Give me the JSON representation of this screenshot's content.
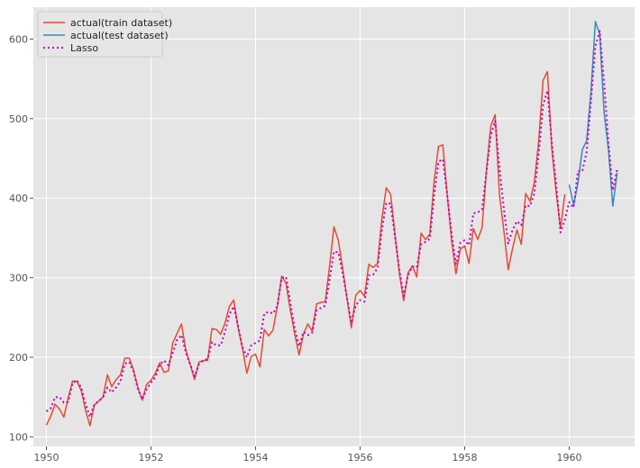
{
  "chart_data": {
    "type": "line",
    "title": "",
    "xlabel": "",
    "ylabel": "",
    "xlim": [
      1949.75,
      1961.25
    ],
    "ylim": [
      88,
      640
    ],
    "xticks": [
      1950,
      1952,
      1954,
      1956,
      1958,
      1960
    ],
    "yticks": [
      100,
      200,
      300,
      400,
      500,
      600
    ],
    "grid": true,
    "legend_position": "top-left",
    "colors": {
      "train": "#e24a33",
      "test": "#348abd",
      "lasso": "#bf00bf",
      "background": "#e5e5e5",
      "grid": "#ffffff"
    },
    "series": [
      {
        "name": "actual(train dataset)",
        "style": "solid",
        "x_start": 1950.0,
        "x_step": 0.08333,
        "values": [
          115,
          126,
          141,
          135,
          125,
          149,
          170,
          170,
          158,
          133,
          114,
          140,
          145,
          150,
          178,
          163,
          172,
          178,
          199,
          199,
          184,
          162,
          146,
          166,
          171,
          180,
          193,
          181,
          183,
          218,
          230,
          242,
          209,
          191,
          172,
          194,
          196,
          196,
          236,
          235,
          229,
          243,
          264,
          272,
          237,
          211,
          180,
          201,
          204,
          188,
          235,
          227,
          234,
          264,
          302,
          293,
          259,
          229,
          203,
          229,
          242,
          233,
          267,
          269,
          270,
          315,
          364,
          347,
          312,
          274,
          237,
          278,
          284,
          277,
          317,
          313,
          318,
          374,
          413,
          405,
          355,
          306,
          271,
          306,
          315,
          301,
          356,
          348,
          355,
          422,
          465,
          467,
          404,
          347,
          305,
          336,
          340,
          318,
          362,
          348,
          363,
          435,
          491,
          505,
          404,
          359,
          310,
          337,
          360,
          342,
          406,
          396,
          420,
          472,
          548,
          559,
          463,
          407,
          362,
          405
        ]
      },
      {
        "name": "actual(test dataset)",
        "style": "solid",
        "x_start": 1960.0,
        "x_step": 0.08333,
        "values": [
          417,
          391,
          419,
          461,
          472,
          535,
          622,
          606,
          508,
          461,
          390,
          432
        ]
      },
      {
        "name": "Lasso",
        "style": "dotted",
        "x_start": 1950.0,
        "x_step": 0.08333,
        "values": [
          132,
          136,
          150,
          150,
          143,
          144,
          168,
          171,
          162,
          141,
          125,
          141,
          145,
          150,
          162,
          156,
          162,
          170,
          192,
          194,
          182,
          160,
          147,
          160,
          168,
          175,
          191,
          196,
          190,
          206,
          222,
          228,
          206,
          191,
          176,
          191,
          196,
          198,
          219,
          215,
          215,
          232,
          254,
          264,
          239,
          213,
          200,
          215,
          218,
          221,
          255,
          257,
          255,
          264,
          300,
          301,
          268,
          236,
          214,
          232,
          228,
          231,
          259,
          262,
          265,
          298,
          333,
          332,
          306,
          274,
          243,
          265,
          272,
          270,
          303,
          304,
          312,
          360,
          394,
          393,
          352,
          311,
          277,
          303,
          314,
          313,
          342,
          345,
          349,
          403,
          446,
          449,
          404,
          356,
          317,
          344,
          347,
          341,
          381,
          382,
          386,
          433,
          479,
          497,
          437,
          387,
          343,
          360,
          371,
          366,
          391,
          390,
          406,
          456,
          517,
          535,
          470,
          418,
          357,
          373,
          395,
          388,
          434,
          434,
          458,
          522,
          591,
          610,
          545,
          470,
          410,
          436
        ]
      }
    ]
  }
}
